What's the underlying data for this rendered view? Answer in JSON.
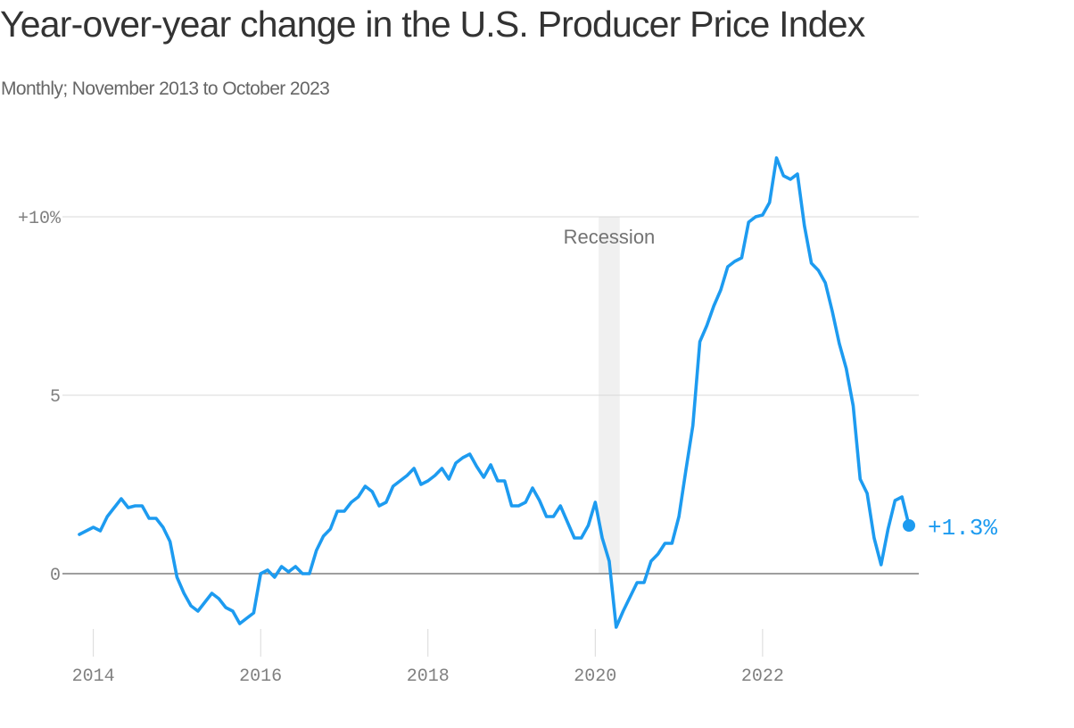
{
  "colors": {
    "line": "#1d9bf0",
    "grid": "#d9d9d9",
    "zero": "#666666",
    "recession": "#f0f0f0"
  },
  "chart_data": {
    "type": "line",
    "title": "Year-over-year change in the U.S. Producer Price Index",
    "subtitle": "Monthly; November 2013 to October 2023",
    "x_start": "2013-11",
    "x_end": "2023-10",
    "ylim": [
      -2.4,
      11.8
    ],
    "y_ticks": [
      {
        "value": 10,
        "label": "+10%"
      },
      {
        "value": 5,
        "label": "5"
      },
      {
        "value": 0,
        "label": "0"
      }
    ],
    "x_ticks": [
      {
        "date": "2014-01",
        "label": "2014"
      },
      {
        "date": "2016-01",
        "label": "2016"
      },
      {
        "date": "2018-01",
        "label": "2018"
      },
      {
        "date": "2020-01",
        "label": "2020"
      },
      {
        "date": "2022-01",
        "label": "2022"
      }
    ],
    "recession": {
      "start": "2020-02",
      "end": "2020-04",
      "label": "Recession"
    },
    "last_label": "+1.3%",
    "series": [
      {
        "values": [
          1.1,
          1.2,
          1.3,
          1.2,
          1.6,
          1.85,
          2.1,
          1.85,
          1.9,
          1.9,
          1.55,
          1.55,
          1.3,
          0.9,
          -0.1,
          -0.55,
          -0.9,
          -1.05,
          -0.8,
          -0.55,
          -0.7,
          -0.95,
          -1.05,
          -1.4,
          -1.25,
          -1.1,
          0.0,
          0.1,
          -0.1,
          0.2,
          0.05,
          0.2,
          0.0,
          0.0,
          0.65,
          1.05,
          1.25,
          1.75,
          1.75,
          2.0,
          2.15,
          2.45,
          2.3,
          1.9,
          2.0,
          2.45,
          2.6,
          2.75,
          2.95,
          2.5,
          2.6,
          2.75,
          2.95,
          2.65,
          3.1,
          3.25,
          3.35,
          3.0,
          2.7,
          3.05,
          2.6,
          2.6,
          1.9,
          1.9,
          2.0,
          2.4,
          2.05,
          1.6,
          1.6,
          1.9,
          1.45,
          1.0,
          1.0,
          1.35,
          2.0,
          1.0,
          0.35,
          -1.5,
          -1.05,
          -0.65,
          -0.25,
          -0.25,
          0.35,
          0.55,
          0.85,
          0.85,
          1.6,
          2.9,
          4.15,
          6.5,
          6.95,
          7.5,
          7.95,
          8.6,
          8.75,
          8.85,
          9.85,
          10.0,
          10.05,
          10.4,
          11.65,
          11.15,
          11.05,
          11.2,
          9.75,
          8.7,
          8.5,
          8.15,
          7.35,
          6.45,
          5.75,
          4.7,
          2.65,
          2.25,
          1.0,
          0.25,
          1.25,
          2.05,
          2.15,
          1.35
        ]
      }
    ]
  }
}
